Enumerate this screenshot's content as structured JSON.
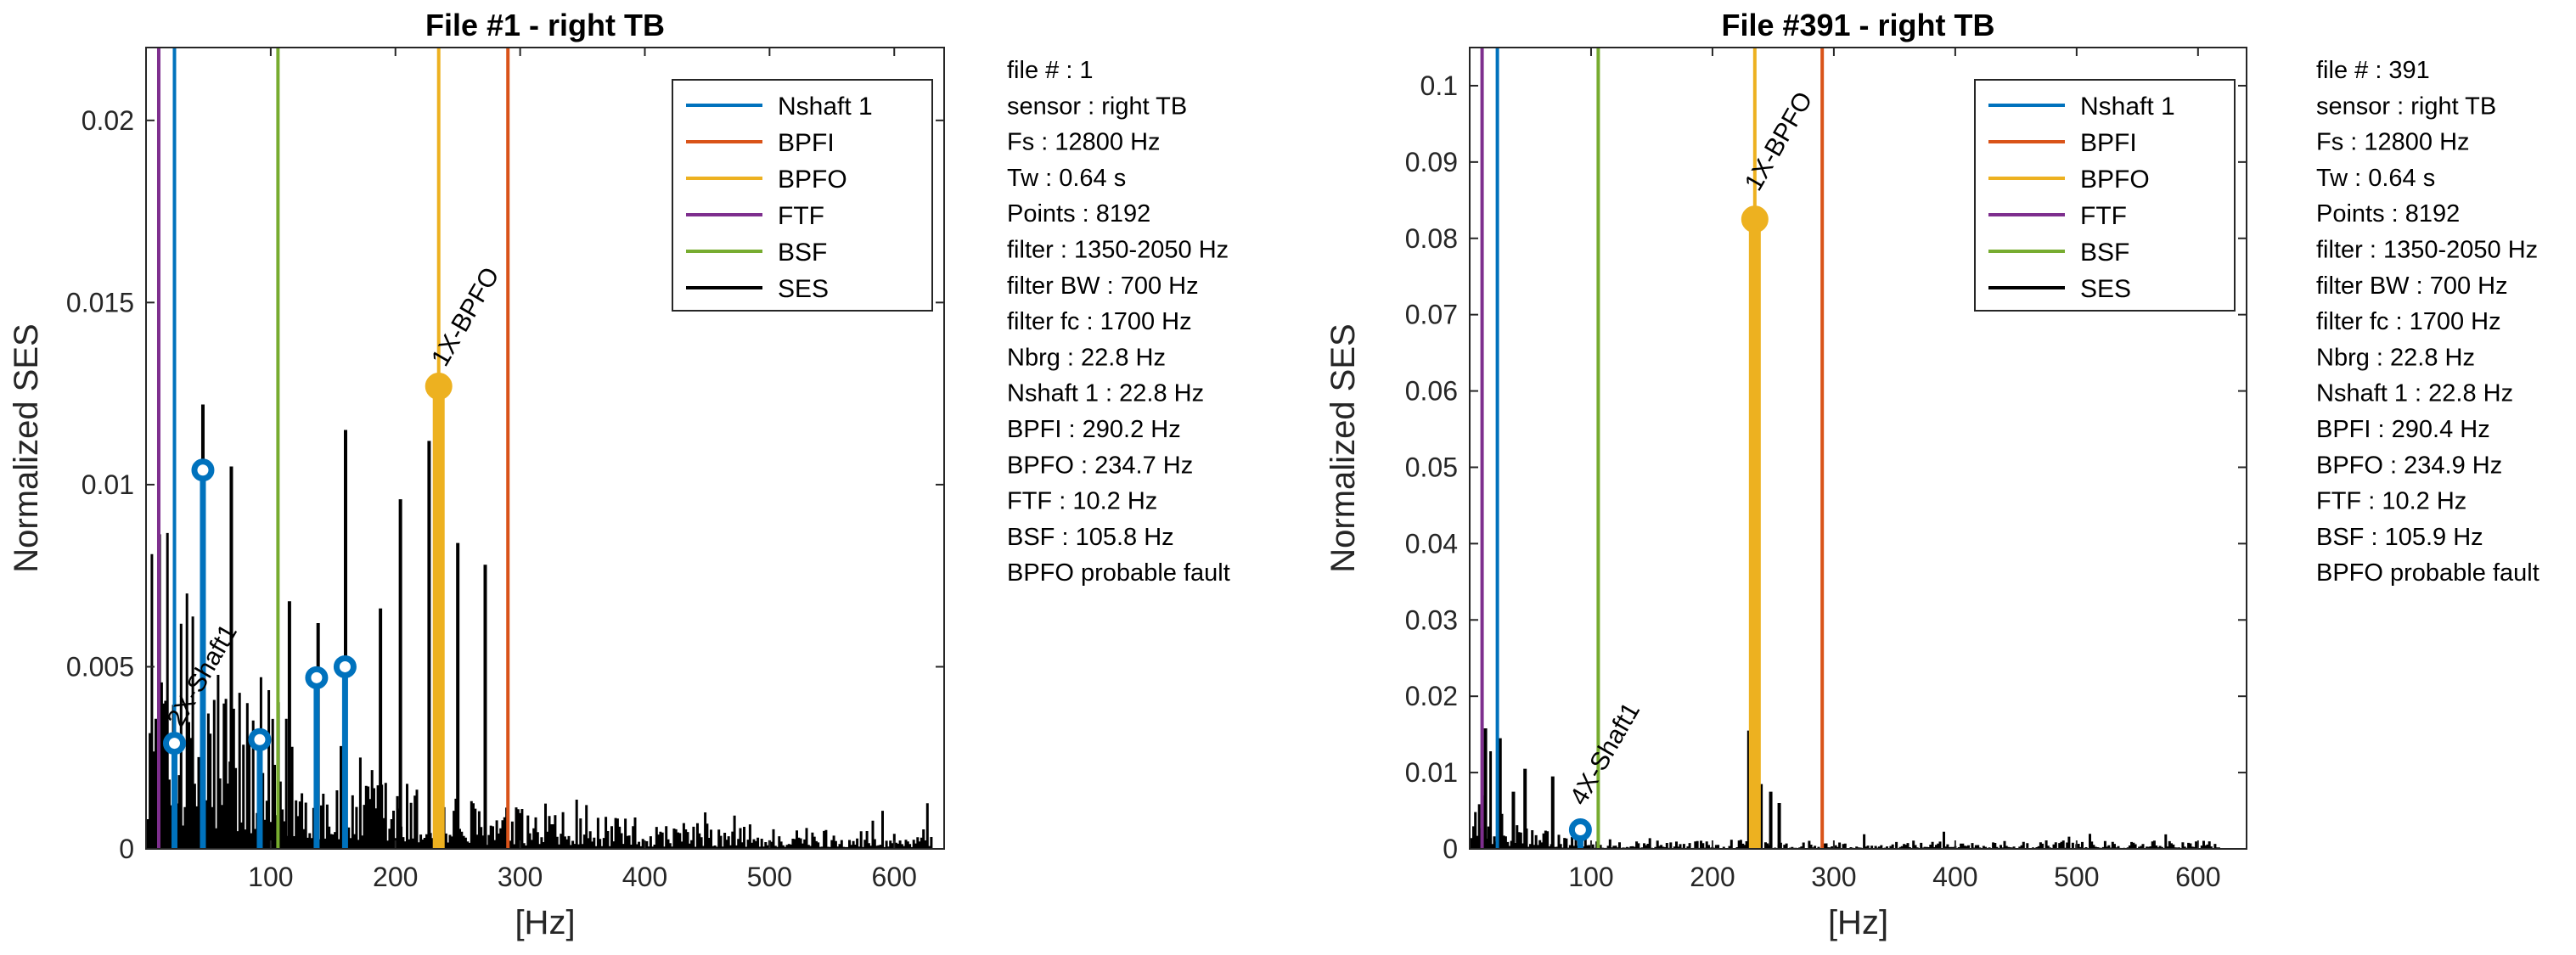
{
  "colors": {
    "Nshaft 1": "#0072BD",
    "BPFI": "#D95319",
    "BPFO": "#EDB120",
    "FTF": "#7E2F8E",
    "BSF": "#77AC30",
    "SES": "#000000"
  },
  "chart_data": [
    {
      "type": "bar",
      "title": "File #1 - right TB",
      "xlabel": "[Hz]",
      "ylabel": "Normalized SES",
      "xlim": [
        0,
        640
      ],
      "ylim": [
        0,
        0.022
      ],
      "xticks": [
        100,
        200,
        300,
        400,
        500,
        600
      ],
      "yticks": [
        0,
        0.005,
        0.01,
        0.015,
        0.02
      ],
      "ytick_labels": [
        "0",
        "0.005",
        "0.01",
        "0.015",
        "0.02"
      ],
      "legend": {
        "placement": "top-right",
        "entries": [
          "Nshaft 1",
          "BPFI",
          "BPFO",
          "FTF",
          "BSF",
          "SES"
        ]
      },
      "marker_lines": [
        {
          "name": "Nshaft 1",
          "x": 22.8
        },
        {
          "name": "BPFI",
          "x": 290.2
        },
        {
          "name": "BPFO",
          "x": 234.7
        },
        {
          "name": "FTF",
          "x": 10.2
        },
        {
          "name": "BSF",
          "x": 105.8
        }
      ],
      "stems": [
        {
          "series": "Nshaft 1",
          "x": 22.8,
          "y": 0.0029
        },
        {
          "series": "Nshaft 1",
          "x": 45.6,
          "y": 0.0104
        },
        {
          "series": "Nshaft 1",
          "x": 91.2,
          "y": 0.003
        },
        {
          "series": "Nshaft 1",
          "x": 136.8,
          "y": 0.0047
        },
        {
          "series": "Nshaft 1",
          "x": 159.6,
          "y": 0.005
        },
        {
          "series": "BPFO",
          "x": 234.7,
          "y": 0.0127
        }
      ],
      "annotations": [
        {
          "text": "1X-BPFO",
          "x": 240,
          "y": 0.0132
        },
        {
          "text": "2X-Shaft1",
          "x": 28,
          "y": 0.0033
        }
      ],
      "ses_peaks": [
        {
          "x": 45.6,
          "y": 0.0122
        },
        {
          "x": 68.4,
          "y": 0.0105
        },
        {
          "x": 160,
          "y": 0.0115
        },
        {
          "x": 204,
          "y": 0.0096
        },
        {
          "x": 227,
          "y": 0.0112
        },
        {
          "x": 250,
          "y": 0.0084
        },
        {
          "x": 272,
          "y": 0.0078
        },
        {
          "x": 188,
          "y": 0.0066
        },
        {
          "x": 115,
          "y": 0.0068
        },
        {
          "x": 138,
          "y": 0.0062
        }
      ],
      "ses_decay": {
        "a": 0.0052,
        "tau": 110,
        "floor": 0.0003,
        "fmax": 630
      },
      "info": [
        "file # : 1",
        "sensor : right TB",
        "Fs : 12800 Hz",
        "Tw : 0.64 s",
        "Points : 8192",
        "filter : 1350-2050 Hz",
        "filter BW : 700 Hz",
        "filter fc : 1700 Hz",
        "Nbrg : 22.8 Hz",
        "Nshaft 1 : 22.8 Hz",
        "BPFI : 290.2 Hz",
        "BPFO : 234.7 Hz",
        "FTF : 10.2 Hz",
        "BSF : 105.8 Hz",
        "BPFO probable fault"
      ]
    },
    {
      "type": "bar",
      "title": "File #391 - right TB",
      "xlabel": "[Hz]",
      "ylabel": "Normalized SES",
      "xlim": [
        0,
        640
      ],
      "ylim": [
        0,
        0.105
      ],
      "xticks": [
        100,
        200,
        300,
        400,
        500,
        600
      ],
      "yticks": [
        0,
        0.01,
        0.02,
        0.03,
        0.04,
        0.05,
        0.06,
        0.07,
        0.08,
        0.09,
        0.1
      ],
      "ytick_labels": [
        "0",
        "0.01",
        "0.02",
        "0.03",
        "0.04",
        "0.05",
        "0.06",
        "0.07",
        "0.08",
        "0.09",
        "0.1"
      ],
      "legend": {
        "placement": "top-right",
        "entries": [
          "Nshaft 1",
          "BPFI",
          "BPFO",
          "FTF",
          "BSF",
          "SES"
        ]
      },
      "marker_lines": [
        {
          "name": "Nshaft 1",
          "x": 22.8
        },
        {
          "name": "BPFI",
          "x": 290.4
        },
        {
          "name": "BPFO",
          "x": 234.9
        },
        {
          "name": "FTF",
          "x": 10.2
        },
        {
          "name": "BSF",
          "x": 105.9
        }
      ],
      "stems": [
        {
          "series": "Nshaft 1",
          "x": 91.2,
          "y": 0.0025
        },
        {
          "series": "BPFO",
          "x": 234.9,
          "y": 0.0825
        }
      ],
      "annotations": [
        {
          "text": "1X-BPFO",
          "x": 238,
          "y": 0.086
        },
        {
          "text": "4X-Shaft1",
          "x": 94,
          "y": 0.0055
        }
      ],
      "ses_peaks": [
        {
          "x": 230,
          "y": 0.0155
        },
        {
          "x": 13,
          "y": 0.0158
        },
        {
          "x": 25,
          "y": 0.0145
        },
        {
          "x": 45.6,
          "y": 0.0105
        },
        {
          "x": 68.4,
          "y": 0.0095
        },
        {
          "x": 240,
          "y": 0.0085
        },
        {
          "x": 248,
          "y": 0.0075
        },
        {
          "x": 255,
          "y": 0.006
        },
        {
          "x": 36,
          "y": 0.0075
        }
      ],
      "ses_decay": {
        "a": 0.0045,
        "tau": 35,
        "floor": 0.0006,
        "fmax": 620
      },
      "info": [
        "file # : 391",
        "sensor : right TB",
        "Fs : 12800 Hz",
        "Tw : 0.64 s",
        "Points : 8192",
        "filter : 1350-2050 Hz",
        "filter BW : 700 Hz",
        "filter fc : 1700 Hz",
        "Nbrg : 22.8 Hz",
        "Nshaft 1 : 22.8 Hz",
        "BPFI : 290.4 Hz",
        "BPFO : 234.9 Hz",
        "FTF : 10.2 Hz",
        "BSF : 105.9 Hz",
        "BPFO probable fault"
      ]
    }
  ]
}
